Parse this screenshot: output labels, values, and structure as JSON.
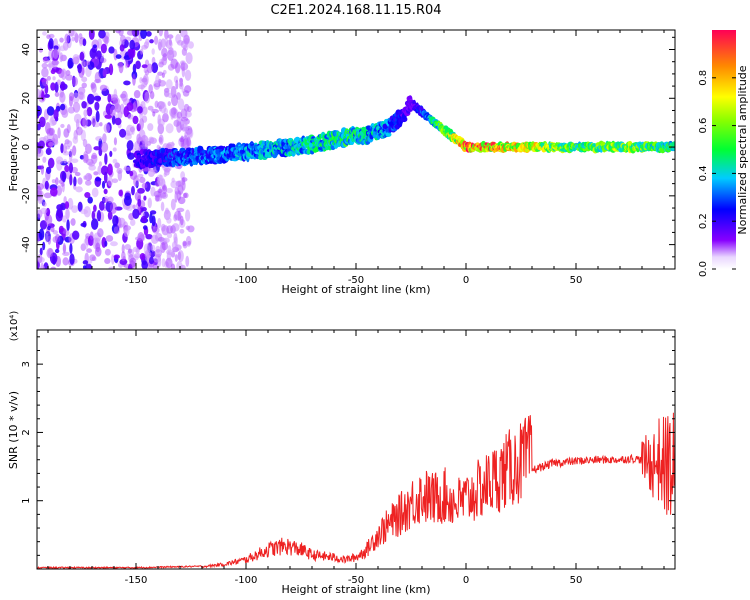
{
  "title": "C2E1.2024.168.11.15.R04",
  "colors": {
    "background": "#ffffff",
    "axis": "#000000",
    "snr_line": "#ee2222"
  },
  "chart_data": [
    {
      "type": "heatmap",
      "xlabel": "Height of straight line (km)",
      "ylabel": "Frequency (Hz)",
      "xlim": [
        -195,
        95
      ],
      "ylim": [
        -50,
        48
      ],
      "x_ticks": [
        -150,
        -100,
        -50,
        0,
        50
      ],
      "y_ticks": [
        -40,
        -20,
        0,
        20,
        40
      ],
      "colormap": "rainbow (purple = low, red = high)",
      "colorbar": {
        "label": "Normalized spectral amplitude",
        "range": [
          0,
          1
        ],
        "ticks": [
          "0.0",
          "0.2",
          "0.4",
          "0.6",
          "0.8"
        ]
      },
      "ridge": {
        "x": [
          -150,
          -130,
          -110,
          -90,
          -70,
          -55,
          -45,
          -35,
          -28,
          -25,
          0,
          25,
          50,
          75,
          95
        ],
        "freq_hz": [
          -5,
          -4,
          -3,
          -1,
          1,
          4,
          5,
          8,
          14,
          18,
          0,
          0,
          0,
          0,
          0
        ],
        "amplitude": [
          0.2,
          0.3,
          0.35,
          0.4,
          0.45,
          0.5,
          0.45,
          0.35,
          0.2,
          0.15,
          0.9,
          0.8,
          0.55,
          0.65,
          0.5
        ]
      },
      "noise_region": [
        -195,
        -125
      ]
    },
    {
      "type": "line",
      "xlabel": "Height of straight line (km)",
      "ylabel": "SNR (10 * v/v)",
      "y_multiplier": "(x10⁴)",
      "xlim": [
        -195,
        95
      ],
      "ylim": [
        0,
        3.5
      ],
      "x_ticks": [
        -150,
        -100,
        -50,
        0,
        50
      ],
      "y_ticks": [
        1,
        2,
        3
      ],
      "series": [
        {
          "x": [
            -195,
            -150,
            -120,
            -110,
            -100,
            -90,
            -82,
            -75,
            -70,
            -60,
            -55,
            -50,
            -45,
            -40,
            -30,
            -25,
            -20,
            -15,
            -10,
            -5,
            0,
            10,
            20,
            30,
            40,
            50,
            60,
            70,
            75,
            80,
            85,
            88,
            90,
            92,
            95
          ],
          "y": [
            0.01,
            0.01,
            0.03,
            0.06,
            0.12,
            0.25,
            0.3,
            0.25,
            0.18,
            0.15,
            0.12,
            0.15,
            0.25,
            0.45,
            0.7,
            0.85,
            0.95,
            0.9,
            0.95,
            0.85,
            0.9,
            1.1,
            1.3,
            1.45,
            1.55,
            1.58,
            1.6,
            1.6,
            1.62,
            1.6,
            1.55,
            1.6,
            1.5,
            1.55,
            1.4
          ]
        }
      ]
    }
  ]
}
